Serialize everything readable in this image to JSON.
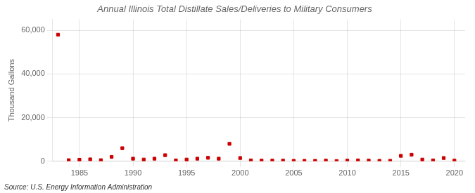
{
  "chart_data": {
    "type": "scatter",
    "title": "Annual Illinois Total Distillate Sales/Deliveries to Military Consumers",
    "ylabel": "Thousand Gallons",
    "source": "Source: U.S. Energy Information Administration",
    "x": [
      1983,
      1984,
      1985,
      1986,
      1987,
      1988,
      1989,
      1990,
      1991,
      1992,
      1993,
      1994,
      1995,
      1996,
      1997,
      1998,
      1999,
      2000,
      2001,
      2002,
      2003,
      2004,
      2005,
      2006,
      2007,
      2008,
      2009,
      2010,
      2011,
      2012,
      2013,
      2014,
      2015,
      2016,
      2017,
      2018,
      2019,
      2020
    ],
    "values": [
      58000,
      500,
      700,
      900,
      500,
      2000,
      6000,
      1200,
      800,
      1200,
      2800,
      400,
      800,
      1200,
      1600,
      1200,
      8000,
      1500,
      400,
      300,
      300,
      300,
      200,
      200,
      200,
      300,
      100,
      300,
      400,
      300,
      200,
      200,
      2500,
      3000,
      800,
      400,
      1500,
      300
    ],
    "color": "#cc0000",
    "marker": "square",
    "xlim": [
      1982.5,
      2021
    ],
    "xticks": [
      1985,
      1990,
      1995,
      2000,
      2005,
      2010,
      2015,
      2020
    ],
    "ylim": [
      0,
      65000
    ],
    "yticks": [
      0,
      {
        "value": 20000,
        "label": "20,000"
      },
      {
        "value": 40000,
        "label": "40,000"
      },
      {
        "value": 60000,
        "label": "60,000"
      }
    ],
    "grid": true
  }
}
